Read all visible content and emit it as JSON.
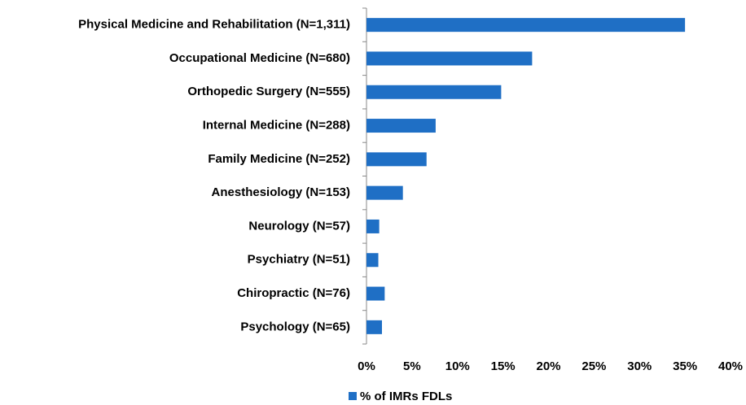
{
  "chart_data": {
    "type": "hbar",
    "categories": [
      "Physical Medicine and Rehabilitation (N=1,311)",
      "Occupational Medicine (N=680)",
      "Orthopedic Surgery (N=555)",
      "Internal Medicine (N=288)",
      "Family Medicine (N=252)",
      "Anesthesiology (N=153)",
      "Neurology (N=57)",
      "Psychiatry (N=51)",
      "Chiropractic (N=76)",
      "Psychology (N=65)"
    ],
    "series": [
      {
        "name": "% of IMRs FDLs",
        "color": "#1f6fc5",
        "values": [
          35.0,
          18.2,
          14.8,
          7.6,
          6.6,
          4.0,
          1.4,
          1.3,
          2.0,
          1.7
        ]
      }
    ],
    "xlim": [
      0,
      40
    ],
    "xticks": [
      {
        "value": 0,
        "label": "0%"
      },
      {
        "value": 5,
        "label": "5%"
      },
      {
        "value": 10,
        "label": "10%"
      },
      {
        "value": 15,
        "label": "15%"
      },
      {
        "value": 20,
        "label": "20%"
      },
      {
        "value": 25,
        "label": "25%"
      },
      {
        "value": 30,
        "label": "30%"
      },
      {
        "value": 35,
        "label": "35%"
      },
      {
        "value": 40,
        "label": "40%"
      }
    ],
    "grid": false,
    "legend": "bottom"
  }
}
